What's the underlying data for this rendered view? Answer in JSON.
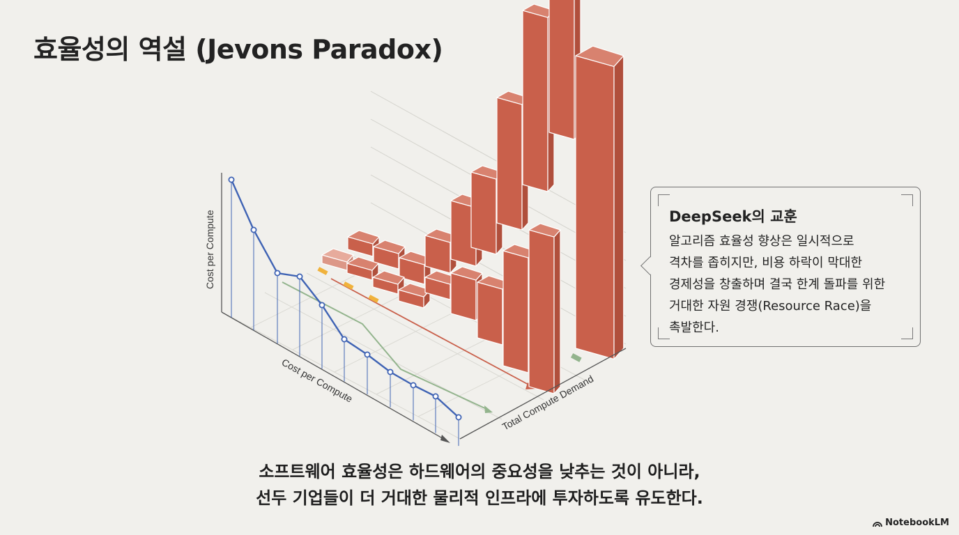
{
  "title": "효율성의 역설 (Jevons Paradox)",
  "chart": {
    "axis_left_label": "Cost per Compute",
    "axis_front_label": "Cost per Compute",
    "axis_right_label": "Total Compute Demand",
    "colors": {
      "bar": "#c9604b",
      "line": "#3f63b4",
      "trend_green": "#93b48d",
      "arrow_red": "#c9604b",
      "marker_orange": "#f0b23c"
    }
  },
  "callout": {
    "title": "DeepSeek의 교훈",
    "lines": [
      "알고리즘 효율성 향상은 일시적으로",
      "격차를 좁히지만, 비용 하락이 막대한",
      "경제성을 창출하며 결국 한계 돌파를 위한",
      "거대한 자원 경쟁(Resource Race)을",
      "촉발한다."
    ]
  },
  "caption": {
    "line1": "소프트웨어 효율성은 하드웨어의 중요성을 낮추는 것이 아니라,",
    "line2": "선두 기업들이 더 거대한 물리적 인프라에 투자하도록 유도한다."
  },
  "brand": "NotebookLM"
}
